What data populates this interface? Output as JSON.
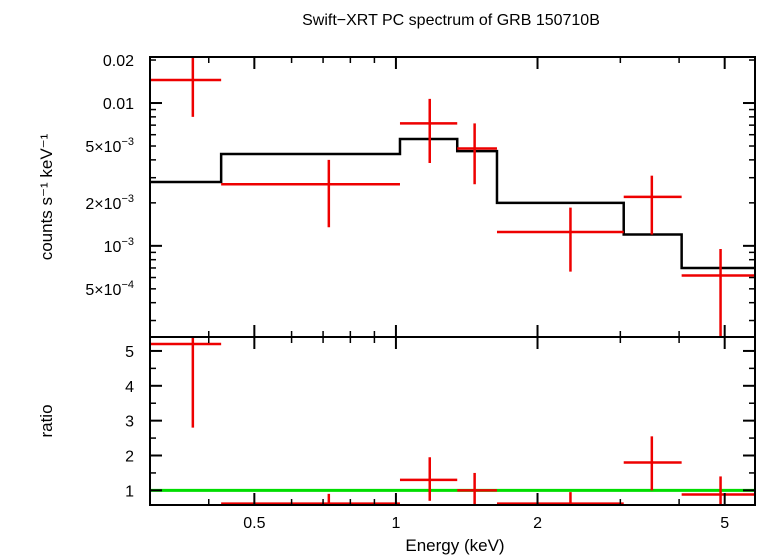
{
  "chart_data": {
    "title": "Swift−XRT PC spectrum of GRB 150710B",
    "xlabel": "Energy (keV)",
    "x_scale": "log",
    "xlim": [
      0.3,
      5.8
    ],
    "x_ticks": [
      {
        "value": 0.5,
        "label": "0.5"
      },
      {
        "value": 1,
        "label": "1"
      },
      {
        "value": 2,
        "label": "2"
      },
      {
        "value": 5,
        "label": "5"
      }
    ],
    "colors": {
      "data": "#ee0000",
      "model": "#000000",
      "unity": "#00dd00",
      "axes": "#000000"
    },
    "panels": [
      {
        "id": "spectrum",
        "type": "scatter",
        "ylabel": "counts s⁻¹ keV⁻¹",
        "y_scale": "log",
        "ylim": [
          0.00023,
          0.021
        ],
        "y_ticks": [
          {
            "value": 0.0005,
            "mantissa": "5×10",
            "exp": "−4"
          },
          {
            "value": 0.001,
            "mantissa": "10",
            "exp": "−3"
          },
          {
            "value": 0.002,
            "mantissa": "2×10",
            "exp": "−3"
          },
          {
            "value": 0.005,
            "mantissa": "5×10",
            "exp": "−3"
          },
          {
            "value": 0.01,
            "mantissa": "0.01",
            "exp": ""
          },
          {
            "value": 0.02,
            "mantissa": "0.02",
            "exp": ""
          }
        ],
        "series": [
          {
            "kind": "data-crosses",
            "points": [
              {
                "x": 0.37,
                "xlo": 0.3,
                "xhi": 0.425,
                "y": 0.0145,
                "ylo": 0.008,
                "yhi": 0.021
              },
              {
                "x": 0.72,
                "xlo": 0.425,
                "xhi": 1.02,
                "y": 0.0027,
                "ylo": 0.00135,
                "yhi": 0.004
              },
              {
                "x": 1.18,
                "xlo": 1.02,
                "xhi": 1.35,
                "y": 0.0072,
                "ylo": 0.0038,
                "yhi": 0.0107
              },
              {
                "x": 1.47,
                "xlo": 1.35,
                "xhi": 1.64,
                "y": 0.0048,
                "ylo": 0.0027,
                "yhi": 0.0072
              },
              {
                "x": 2.35,
                "xlo": 1.64,
                "xhi": 3.05,
                "y": 0.00125,
                "ylo": 0.00066,
                "yhi": 0.00185
              },
              {
                "x": 3.5,
                "xlo": 3.05,
                "xhi": 4.05,
                "y": 0.0022,
                "ylo": 0.0012,
                "yhi": 0.0031
              },
              {
                "x": 4.9,
                "xlo": 4.05,
                "xhi": 5.8,
                "y": 0.00062,
                "ylo": 0.00023,
                "yhi": 0.00095
              }
            ]
          },
          {
            "kind": "model-step",
            "steps": [
              {
                "x0": 0.3,
                "x1": 0.425,
                "y": 0.0028
              },
              {
                "x0": 0.425,
                "x1": 1.02,
                "y": 0.0044
              },
              {
                "x0": 1.02,
                "x1": 1.35,
                "y": 0.0056
              },
              {
                "x0": 1.35,
                "x1": 1.64,
                "y": 0.0046
              },
              {
                "x0": 1.64,
                "x1": 3.05,
                "y": 0.002
              },
              {
                "x0": 3.05,
                "x1": 4.05,
                "y": 0.0012
              },
              {
                "x0": 4.05,
                "x1": 5.8,
                "y": 0.0007
              }
            ]
          }
        ]
      },
      {
        "id": "ratio",
        "type": "scatter",
        "ylabel": "ratio",
        "y_scale": "linear",
        "ylim": [
          0.58,
          5.4
        ],
        "y_ticks": [
          {
            "value": 1,
            "label": "1"
          },
          {
            "value": 2,
            "label": "2"
          },
          {
            "value": 3,
            "label": "3"
          },
          {
            "value": 4,
            "label": "4"
          },
          {
            "value": 5,
            "label": "5"
          }
        ],
        "unity_line": 1,
        "series": [
          {
            "kind": "data-crosses",
            "points": [
              {
                "x": 0.37,
                "xlo": 0.3,
                "xhi": 0.425,
                "y": 5.2,
                "ylo": 2.8,
                "yhi": 5.4
              },
              {
                "x": 0.72,
                "xlo": 0.425,
                "xhi": 1.02,
                "y": 0.62,
                "ylo": 0.58,
                "yhi": 0.9
              },
              {
                "x": 1.18,
                "xlo": 1.02,
                "xhi": 1.35,
                "y": 1.3,
                "ylo": 0.7,
                "yhi": 1.95
              },
              {
                "x": 1.47,
                "xlo": 1.35,
                "xhi": 1.64,
                "y": 1.0,
                "ylo": 0.58,
                "yhi": 1.5
              },
              {
                "x": 2.35,
                "xlo": 1.64,
                "xhi": 3.05,
                "y": 0.62,
                "ylo": 0.58,
                "yhi": 0.95
              },
              {
                "x": 3.5,
                "xlo": 3.05,
                "xhi": 4.05,
                "y": 1.8,
                "ylo": 1.0,
                "yhi": 2.55
              },
              {
                "x": 4.9,
                "xlo": 4.05,
                "xhi": 5.8,
                "y": 0.88,
                "ylo": 0.58,
                "yhi": 1.4
              }
            ]
          }
        ]
      }
    ]
  }
}
